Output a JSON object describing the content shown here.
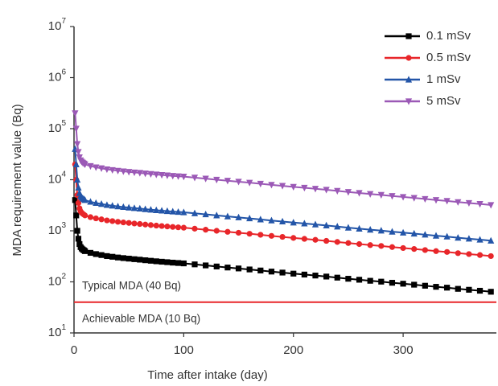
{
  "chart_data": {
    "type": "line",
    "x_label": "Time after intake (day)",
    "y_label": "MDA requirement value (Bq)",
    "log_y": true,
    "xlim": [
      0,
      385
    ],
    "xticks": [
      0,
      100,
      200,
      300
    ],
    "ylim": [
      10,
      10000000
    ],
    "yticks": [
      {
        "value": 10,
        "label": "10",
        "exponent": "1"
      },
      {
        "value": 100,
        "label": "10",
        "exponent": "2"
      },
      {
        "value": 1000,
        "label": "10",
        "exponent": "3"
      },
      {
        "value": 10000,
        "label": "10",
        "exponent": "4"
      },
      {
        "value": 100000,
        "label": "10",
        "exponent": "5"
      },
      {
        "value": 1000000,
        "label": "10",
        "exponent": "6"
      },
      {
        "value": 10000000,
        "label": "10",
        "exponent": "7"
      }
    ],
    "legend_position": "upper right",
    "x": [
      1,
      2,
      3,
      4,
      5,
      6,
      7,
      8,
      9,
      10,
      15,
      20,
      25,
      30,
      35,
      40,
      45,
      50,
      55,
      60,
      65,
      70,
      75,
      80,
      85,
      90,
      95,
      100,
      110,
      120,
      130,
      140,
      150,
      160,
      170,
      180,
      190,
      200,
      210,
      220,
      230,
      240,
      250,
      260,
      270,
      280,
      290,
      300,
      310,
      320,
      330,
      340,
      350,
      360,
      370,
      380
    ],
    "series": [
      {
        "name": "0.1 mSv",
        "color": "#000000",
        "marker": "square",
        "values": [
          4000,
          2000,
          1000,
          700,
          550,
          480,
          450,
          430,
          415,
          400,
          370,
          350,
          335,
          320,
          310,
          300,
          292,
          285,
          278,
          272,
          265,
          259,
          253,
          248,
          243,
          238,
          234,
          230,
          220,
          210,
          200,
          191,
          183,
          175,
          167,
          159,
          152,
          145,
          139,
          133,
          127,
          121,
          115,
          110,
          105,
          101,
          96,
          92,
          88,
          84,
          80,
          77,
          73,
          70,
          67,
          64
        ]
      },
      {
        "name": "0.5 mSv",
        "color": "#e8262a",
        "marker": "circle",
        "values": [
          20000,
          10000,
          5000,
          3500,
          2750,
          2400,
          2250,
          2150,
          2075,
          2000,
          1850,
          1750,
          1675,
          1600,
          1550,
          1500,
          1460,
          1425,
          1390,
          1360,
          1325,
          1295,
          1265,
          1240,
          1215,
          1190,
          1170,
          1150,
          1100,
          1050,
          1000,
          955,
          915,
          875,
          835,
          795,
          760,
          725,
          695,
          665,
          635,
          605,
          575,
          550,
          525,
          505,
          480,
          460,
          440,
          420,
          400,
          385,
          365,
          350,
          335,
          320
        ]
      },
      {
        "name": "1 mSv",
        "color": "#2355a8",
        "marker": "triangle-up",
        "values": [
          40000,
          20000,
          10000,
          7000,
          5500,
          4800,
          4500,
          4300,
          4150,
          4000,
          3700,
          3500,
          3350,
          3200,
          3100,
          3000,
          2920,
          2850,
          2780,
          2720,
          2650,
          2590,
          2530,
          2480,
          2430,
          2380,
          2340,
          2300,
          2200,
          2100,
          2000,
          1910,
          1830,
          1750,
          1670,
          1590,
          1520,
          1450,
          1390,
          1330,
          1270,
          1210,
          1150,
          1100,
          1050,
          1010,
          960,
          920,
          880,
          840,
          800,
          770,
          730,
          700,
          670,
          640
        ]
      },
      {
        "name": "5 mSv",
        "color": "#9b59b6",
        "marker": "triangle-down",
        "values": [
          200000,
          100000,
          50000,
          35000,
          27500,
          24000,
          22500,
          21500,
          20750,
          20000,
          18500,
          17500,
          16750,
          16000,
          15500,
          15000,
          14600,
          14250,
          13900,
          13600,
          13250,
          12950,
          12650,
          12400,
          12150,
          11900,
          11700,
          11500,
          11000,
          10500,
          10000,
          9550,
          9150,
          8750,
          8350,
          7950,
          7600,
          7250,
          6950,
          6650,
          6350,
          6050,
          5750,
          5500,
          5250,
          5050,
          4800,
          4600,
          4400,
          4200,
          4000,
          3850,
          3650,
          3500,
          3350,
          3200
        ]
      }
    ],
    "reference_line": {
      "value": 40,
      "color": "#e8262a"
    },
    "annotations": [
      "Typical MDA (40 Bq)",
      "Achievable MDA (10 Bq)"
    ]
  }
}
